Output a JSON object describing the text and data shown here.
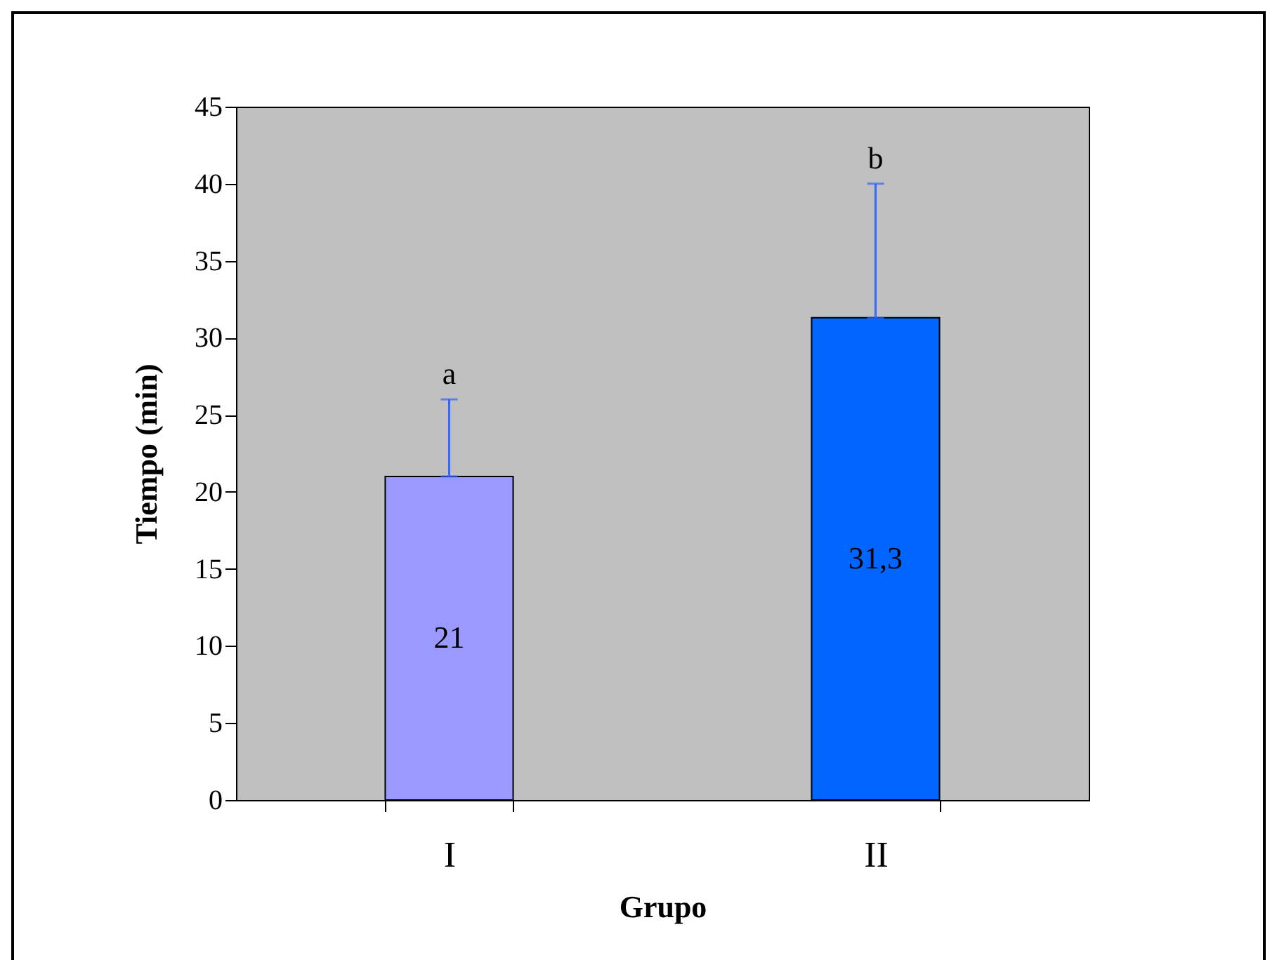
{
  "chart_data": {
    "type": "bar",
    "xlabel": "Grupo",
    "ylabel": "Tiempo (min)",
    "categories": [
      "I",
      "II"
    ],
    "values": [
      21,
      31.3
    ],
    "colors": [
      "#9999ff",
      "#0066ff"
    ],
    "errors": [
      [
        21,
        26
      ],
      [
        31.3,
        40
      ]
    ],
    "value_labels": [
      "21",
      "31,3"
    ],
    "annotations": [
      {
        "text": "a",
        "x": "I",
        "y": 26
      },
      {
        "text": "b",
        "x": "II",
        "y": 40
      }
    ],
    "ylim": [
      0,
      45
    ],
    "yticks": [
      0,
      5,
      10,
      15,
      20,
      25,
      30,
      35,
      40,
      45
    ],
    "grid": false,
    "legend": false
  }
}
